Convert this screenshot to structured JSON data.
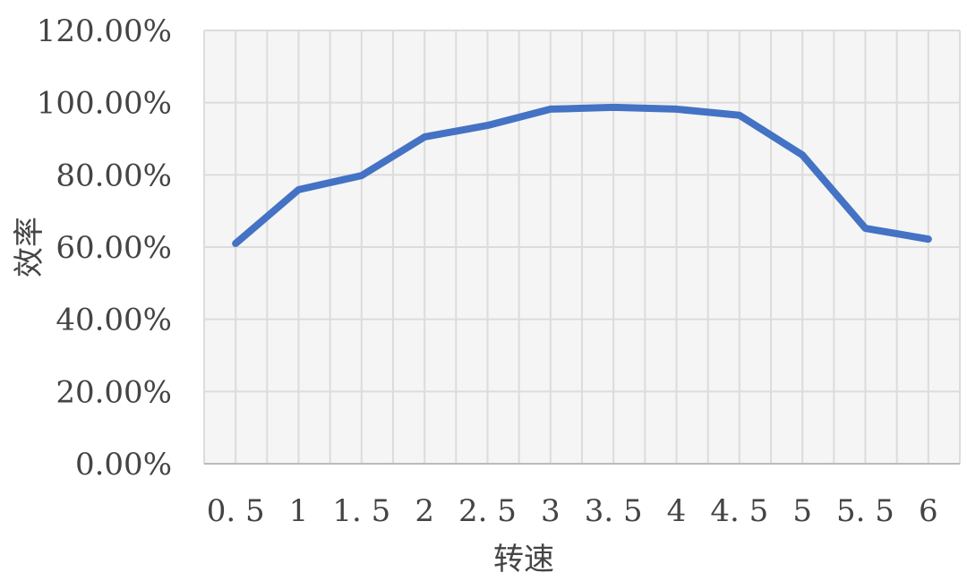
{
  "chart_data": {
    "type": "line",
    "title": "",
    "xlabel": "转速",
    "ylabel": "效率",
    "categories": [
      "0.5",
      "1",
      "1.5",
      "2",
      "2.5",
      "3",
      "3.5",
      "4",
      "4.5",
      "5",
      "5.5",
      "6"
    ],
    "series": [
      {
        "values": [
          61.0,
          75.9,
          79.8,
          90.5,
          93.7,
          98.2,
          98.7,
          98.2,
          96.5,
          85.5,
          65.2,
          62.2
        ],
        "color": "#4472C4"
      }
    ],
    "y_ticks": [
      "0.00%",
      "20.00%",
      "40.00%",
      "60.00%",
      "80.00%",
      "100.00%",
      "120.00%"
    ],
    "x_tick_labels": [
      "0. 5",
      "1",
      "1. 5",
      "2",
      "2. 5",
      "3",
      "3. 5",
      "4",
      "4. 5",
      "5",
      "5. 5",
      "6"
    ],
    "ylim": [
      0,
      120
    ],
    "grid": true,
    "legend": "none",
    "plot_background": "#F5F5F5",
    "grid_color": "#DCDCDC"
  }
}
